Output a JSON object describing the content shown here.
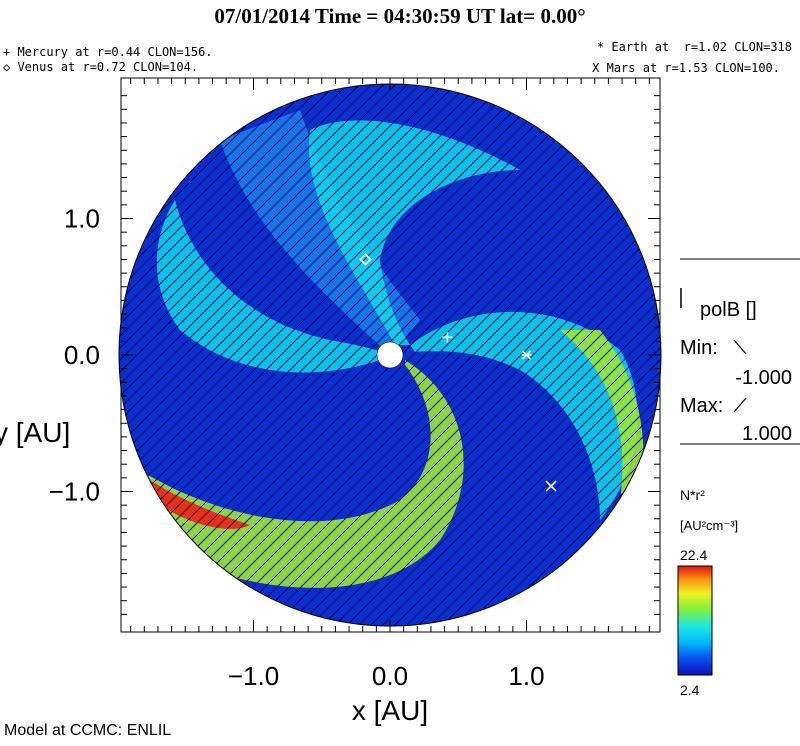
{
  "header": {
    "title": "07/01/2014 Time = 04:30:59 UT lat= 0.00°",
    "mercury": "+ Mercury at r=0.44 CLON=156.",
    "venus": "◇ Venus at r=0.72 CLON=104.",
    "earth": "* Earth at  r=1.02 CLON=318",
    "mars": "X Mars at r=1.53 CLON=100."
  },
  "legend": {
    "polb_label": "polB []",
    "min_label": "Min:",
    "min_value": "-1.000",
    "max_label": "Max:",
    "max_value": "1.000",
    "density_label": "N*r²",
    "density_unit": "[AU²cm⁻³]",
    "cbar_max": "22.4",
    "cbar_min": "2.4"
  },
  "footer": {
    "credit": "Model at CCMC: ENLIL"
  },
  "colors": {
    "background": "#0a2fd0",
    "spiral_cyan": "#14d8f0",
    "spiral_green": "#9ae63c",
    "hot_red": "#e8281c"
  },
  "chart_data": {
    "type": "heatmap",
    "xlabel": "x [AU]",
    "ylabel": "y [AU]",
    "xlim": [
      -2.0,
      2.0
    ],
    "ylim": [
      -2.0,
      2.0
    ],
    "xticks": [
      {
        "value": -1.0,
        "label": "−1.0"
      },
      {
        "value": 0.0,
        "label": "0.0"
      },
      {
        "value": 1.0,
        "label": "1.0"
      }
    ],
    "yticks": [
      {
        "value": 1.0,
        "label": "1.0"
      },
      {
        "value": 0.0,
        "label": "0.0"
      },
      {
        "value": -1.0,
        "label": "−1.0"
      }
    ],
    "colorbar": {
      "min": 2.4,
      "max": 22.4,
      "colormap": "jet"
    },
    "planets": [
      {
        "name": "Mercury",
        "marker": "+",
        "x": 0.42,
        "y": 0.13
      },
      {
        "name": "Venus",
        "marker": "◇",
        "x": -0.18,
        "y": 0.7
      },
      {
        "name": "Earth",
        "marker": "*",
        "x": 1.0,
        "y": 0.0
      },
      {
        "name": "Mars",
        "marker": "X",
        "x": 1.18,
        "y": -0.96
      }
    ],
    "domain_radius": 2.0,
    "inner_boundary_radius": 0.1
  }
}
